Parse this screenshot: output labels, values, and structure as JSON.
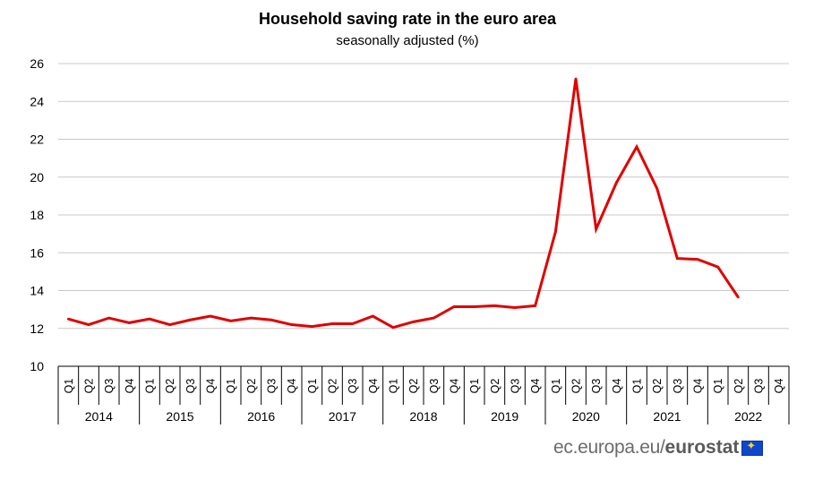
{
  "chart_data": {
    "type": "line",
    "title": "Household  saving  rate in the euro area",
    "subtitle": "seasonally adjusted (%)",
    "ylim": [
      10,
      26
    ],
    "yticks": [
      10,
      12,
      14,
      16,
      18,
      20,
      22,
      24,
      26
    ],
    "grid": true,
    "years": [
      "2014",
      "2015",
      "2016",
      "2017",
      "2018",
      "2019",
      "2020",
      "2021",
      "2022"
    ],
    "quarters": [
      "Q1",
      "Q2",
      "Q3",
      "Q4"
    ],
    "series": [
      {
        "name": "Household saving rate",
        "color": "#e00000",
        "values": [
          12.5,
          12.2,
          12.55,
          12.3,
          12.5,
          12.2,
          12.45,
          12.65,
          12.4,
          12.55,
          12.45,
          12.2,
          12.1,
          12.25,
          12.25,
          12.65,
          12.05,
          12.35,
          12.55,
          13.15,
          13.15,
          13.2,
          13.1,
          13.2,
          17.1,
          25.2,
          17.25,
          19.7,
          21.6,
          19.4,
          15.7,
          15.65,
          15.25,
          13.65,
          null,
          null
        ]
      }
    ]
  },
  "branding": {
    "url": "ec.europa.eu/",
    "name": "eurostat",
    "flag_icon": "eu-flag-icon"
  }
}
